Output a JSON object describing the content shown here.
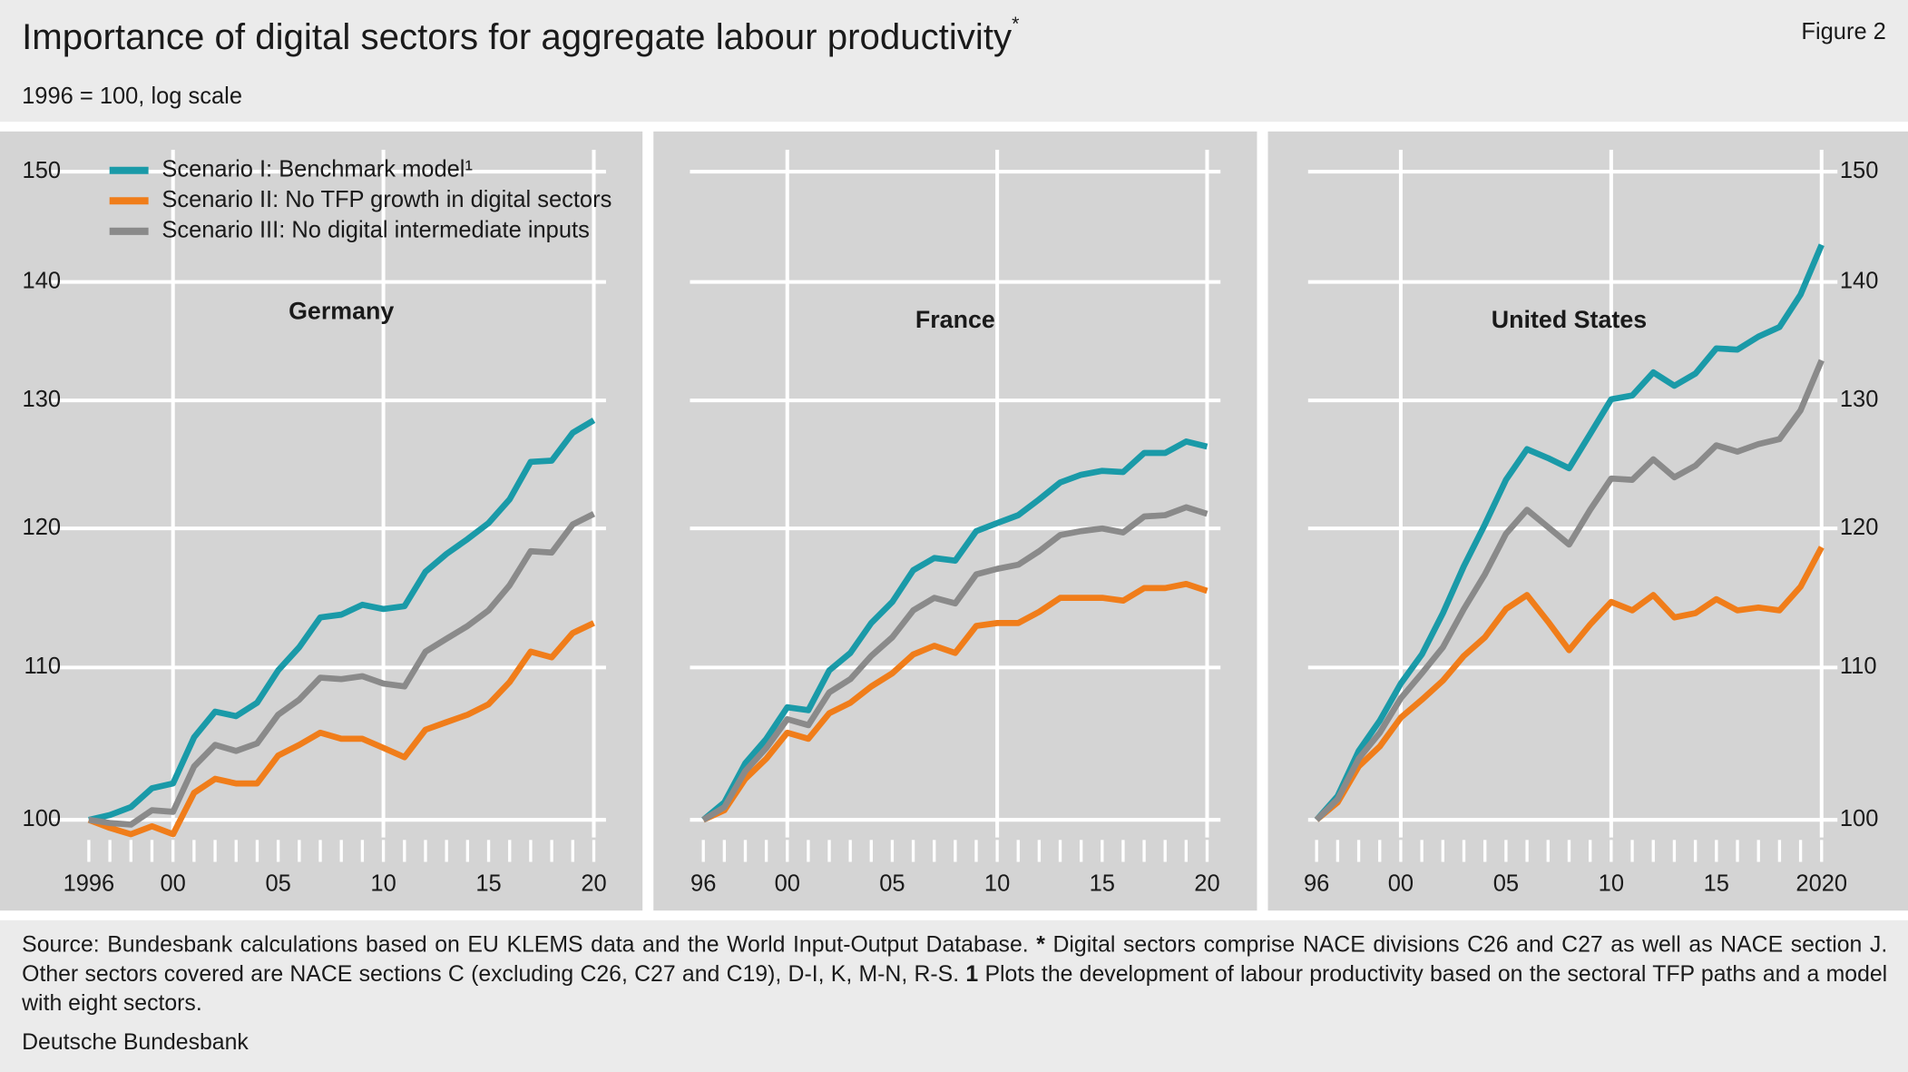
{
  "title": "Importance of digital sectors for aggregate labour productivity",
  "title_marker": "*",
  "figure_label": "Figure 2",
  "subtitle": "1996 = 100, log scale",
  "note": [
    "Source: Bundesbank calculations based on EU KLEMS data and the World Input-Output Database. ",
    "*",
    " Digital sectors comprise NACE divisions C26 and C27 as well as NACE section J. Other sectors covered are NACE sections C (excluding C26, C27 and C19), D-I, K, M-N, R-S. ",
    "1",
    " Plots the development of labour productivity based on the sectoral TFP paths and a model with eight sectors."
  ],
  "source": "Deutsche Bundesbank",
  "chart_data": [
    {
      "type": "line",
      "title": "Germany",
      "log_scale": true,
      "grid": true,
      "legend": "upper left",
      "yaxis_side": "left",
      "x": [
        1996,
        1997,
        1998,
        1999,
        2000,
        2001,
        2002,
        2003,
        2004,
        2005,
        2006,
        2007,
        2008,
        2009,
        2010,
        2011,
        2012,
        2013,
        2014,
        2015,
        2016,
        2017,
        2018,
        2019,
        2020
      ],
      "xlim": [
        1996,
        2020
      ],
      "xticks": [
        {
          "value": 1996,
          "label": "1996"
        },
        {
          "value": 2000,
          "label": "00"
        },
        {
          "value": 2005,
          "label": "05"
        },
        {
          "value": 2010,
          "label": "10"
        },
        {
          "value": 2015,
          "label": "15"
        },
        {
          "value": 2020,
          "label": "20"
        }
      ],
      "ylim": [
        98,
        155
      ],
      "yticks": [
        100,
        110,
        120,
        130,
        140,
        150
      ],
      "series": [
        {
          "name": "Scenario I: Benchmark model¹",
          "color": "#1a9aa8",
          "values": [
            100,
            100.3,
            100.8,
            102,
            102.3,
            105.3,
            107,
            106.7,
            107.6,
            109.8,
            111.4,
            113.5,
            113.7,
            114.4,
            114.1,
            114.3,
            116.8,
            118.1,
            119.2,
            120.4,
            122.2,
            125.1,
            125.2,
            127.4,
            128.4
          ]
        },
        {
          "name": "Scenario II: No TFP growth in digital sectors",
          "color": "#f07d1a",
          "values": [
            100,
            99.5,
            99.1,
            99.6,
            99.1,
            101.7,
            102.6,
            102.3,
            102.3,
            104.1,
            104.8,
            105.6,
            105.2,
            105.2,
            104.6,
            104.0,
            105.8,
            106.3,
            106.8,
            107.5,
            109.0,
            111.1,
            110.7,
            112.4,
            113.1
          ]
        },
        {
          "name": "Scenario III: No digital intermediate inputs",
          "color": "#8a8a8a",
          "values": [
            100,
            99.8,
            99.7,
            100.6,
            100.5,
            103.4,
            104.8,
            104.4,
            104.9,
            106.8,
            107.8,
            109.3,
            109.2,
            109.4,
            108.9,
            108.7,
            111.1,
            112.0,
            112.9,
            114.0,
            115.8,
            118.3,
            118.2,
            120.3,
            121.1
          ]
        }
      ]
    },
    {
      "type": "line",
      "title": "France",
      "log_scale": true,
      "grid": true,
      "yaxis_side": "none",
      "x": [
        1996,
        1997,
        1998,
        1999,
        2000,
        2001,
        2002,
        2003,
        2004,
        2005,
        2006,
        2007,
        2008,
        2009,
        2010,
        2011,
        2012,
        2013,
        2014,
        2015,
        2016,
        2017,
        2018,
        2019,
        2020
      ],
      "xlim": [
        1996,
        2020
      ],
      "xticks": [
        {
          "value": 1996,
          "label": "96"
        },
        {
          "value": 2000,
          "label": "00"
        },
        {
          "value": 2005,
          "label": "05"
        },
        {
          "value": 2010,
          "label": "10"
        },
        {
          "value": 2015,
          "label": "15"
        },
        {
          "value": 2020,
          "label": "20"
        }
      ],
      "ylim": [
        98,
        155
      ],
      "yticks": [
        100,
        110,
        120,
        130,
        140,
        150
      ],
      "series": [
        {
          "color": "#1a9aa8",
          "values": [
            100,
            101.1,
            103.6,
            105.2,
            107.3,
            107.1,
            109.8,
            111,
            113.1,
            114.6,
            116.9,
            117.8,
            117.6,
            119.8,
            120.4,
            121,
            122.2,
            123.5,
            124.1,
            124.4,
            124.3,
            125.8,
            125.8,
            126.7,
            126.3
          ]
        },
        {
          "color": "#f07d1a",
          "values": [
            100,
            100.6,
            102.6,
            103.9,
            105.6,
            105.2,
            106.9,
            107.6,
            108.7,
            109.6,
            110.9,
            111.5,
            111,
            112.9,
            113.1,
            113.1,
            113.9,
            114.9,
            114.9,
            114.9,
            114.7,
            115.6,
            115.6,
            115.9,
            115.4
          ]
        },
        {
          "color": "#8a8a8a",
          "values": [
            100,
            100.8,
            103.1,
            104.6,
            106.5,
            106.1,
            108.3,
            109.2,
            110.8,
            112.1,
            114,
            114.9,
            114.5,
            116.6,
            117,
            117.3,
            118.3,
            119.5,
            119.8,
            120,
            119.7,
            120.9,
            121,
            121.6,
            121.1
          ]
        }
      ]
    },
    {
      "type": "line",
      "title": "United States",
      "log_scale": true,
      "grid": true,
      "yaxis_side": "right",
      "x": [
        1996,
        1997,
        1998,
        1999,
        2000,
        2001,
        2002,
        2003,
        2004,
        2005,
        2006,
        2007,
        2008,
        2009,
        2010,
        2011,
        2012,
        2013,
        2014,
        2015,
        2016,
        2017,
        2018,
        2019,
        2020
      ],
      "xlim": [
        1996,
        2020
      ],
      "xticks": [
        {
          "value": 1996,
          "label": "96"
        },
        {
          "value": 2000,
          "label": "00"
        },
        {
          "value": 2005,
          "label": "05"
        },
        {
          "value": 2010,
          "label": "10"
        },
        {
          "value": 2015,
          "label": "15"
        },
        2020
      ],
      "ylim": [
        98,
        155
      ],
      "yticks": [
        100,
        110,
        120,
        130,
        140,
        150
      ],
      "series": [
        {
          "color": "#1a9aa8",
          "values": [
            100,
            101.5,
            104.4,
            106.4,
            108.9,
            110.9,
            113.8,
            117.2,
            120.3,
            123.7,
            126.1,
            125.4,
            124.6,
            127.3,
            130.1,
            130.4,
            132.3,
            131.2,
            132.2,
            134.3,
            134.2,
            135.3,
            136.1,
            138.9,
            143.3
          ]
        },
        {
          "color": "#f07d1a",
          "values": [
            100,
            101.1,
            103.4,
            104.7,
            106.6,
            107.8,
            109.1,
            110.8,
            112.1,
            114.1,
            115.1,
            113.2,
            111.2,
            113,
            114.6,
            114,
            115.1,
            113.5,
            113.8,
            114.8,
            114.0,
            114.2,
            114,
            115.7,
            118.6
          ]
        },
        {
          "color": "#8a8a8a",
          "values": [
            100,
            101.3,
            103.9,
            105.6,
            107.9,
            109.6,
            111.4,
            114.1,
            116.6,
            119.6,
            121.4,
            120.1,
            118.8,
            121.4,
            123.8,
            123.7,
            125.3,
            123.9,
            124.8,
            126.4,
            125.9,
            126.5,
            126.9,
            129.2,
            133.3
          ]
        }
      ]
    }
  ]
}
